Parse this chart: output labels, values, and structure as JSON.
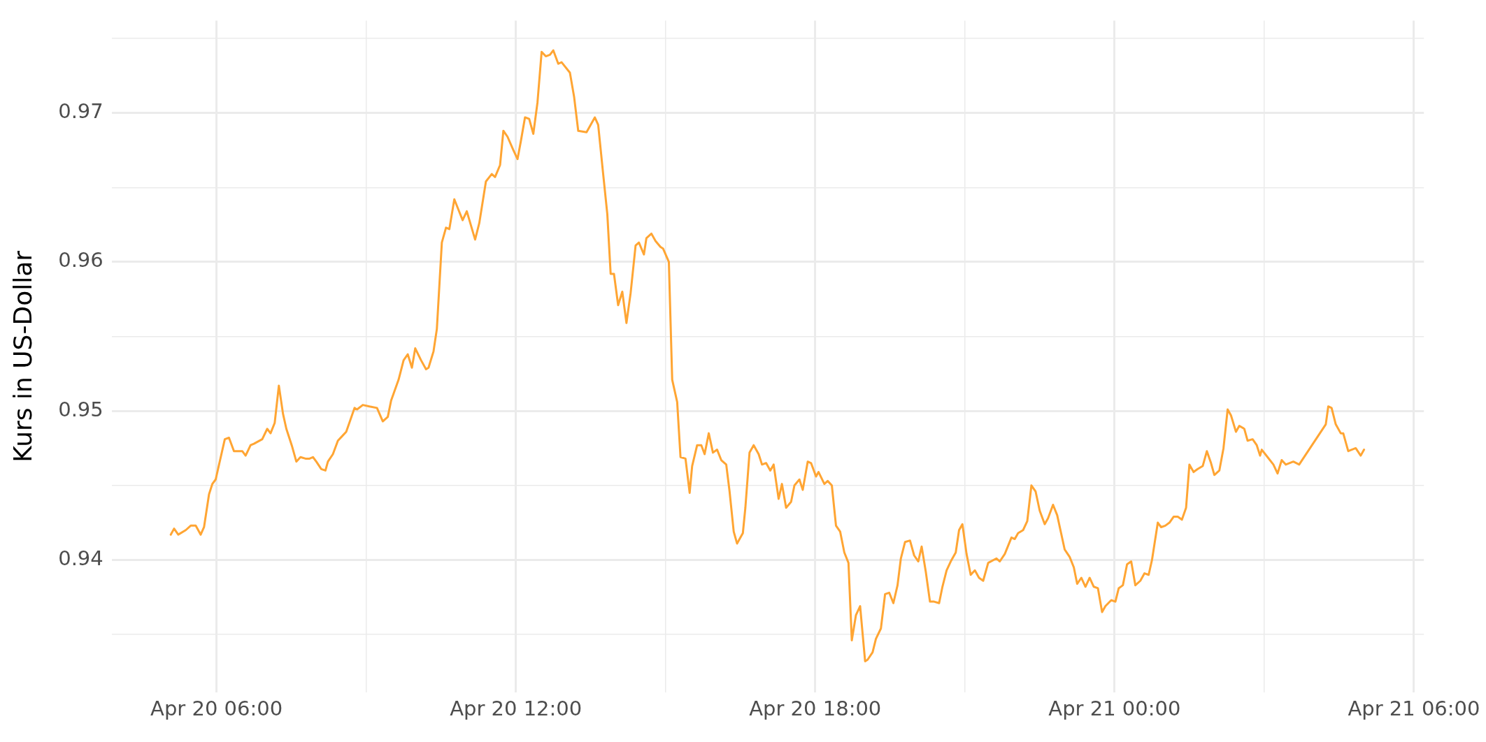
{
  "chart_data": {
    "type": "line",
    "ylabel": "Kurs in US-Dollar",
    "grid": true,
    "legend": false,
    "marker": "none",
    "line_style": "solid",
    "xlim": [
      "--04-20T03:54",
      "--04-21T06:12"
    ],
    "xticks": [
      {
        "value": "--04-20T06:00",
        "label": "Apr 20 06:00"
      },
      {
        "value": "--04-20T09:00",
        "label": null
      },
      {
        "value": "--04-20T12:00",
        "label": "Apr 20 12:00"
      },
      {
        "value": "--04-20T15:00",
        "label": null
      },
      {
        "value": "--04-20T18:00",
        "label": "Apr 20 18:00"
      },
      {
        "value": "--04-20T21:00",
        "label": null
      },
      {
        "value": "--04-21T00:00",
        "label": "Apr 21 00:00"
      },
      {
        "value": "--04-21T03:00",
        "label": null
      },
      {
        "value": "--04-21T06:00",
        "label": "Apr 21 06:00"
      }
    ],
    "ylim": [
      0.9311,
      0.9762
    ],
    "yticks": [
      {
        "value": 0.935,
        "label": null
      },
      0.94,
      {
        "value": 0.945,
        "label": null
      },
      0.95,
      {
        "value": 0.955,
        "label": null
      },
      0.96,
      {
        "value": 0.965,
        "label": null
      },
      0.97,
      {
        "value": 0.975,
        "label": null
      }
    ],
    "series": [
      {
        "color": "#ffa533",
        "x": [
          "--04-20T05:05",
          "--04-20T05:09",
          "--04-20T05:14",
          "--04-20T05:23",
          "--04-20T05:29",
          "--04-20T05:35",
          "--04-20T05:41",
          "--04-20T05:45",
          "--04-20T05:51",
          "--04-20T05:55",
          "--04-20T05:59",
          "--04-20T06:10",
          "--04-20T06:15",
          "--04-20T06:21",
          "--04-20T06:26",
          "--04-20T06:31",
          "--04-20T06:35",
          "--04-20T06:41",
          "--04-20T06:45",
          "--04-20T06:55",
          "--04-20T07:01",
          "--04-20T07:05",
          "--04-20T07:10",
          "--04-20T07:15",
          "--04-20T07:20",
          "--04-20T07:24",
          "--04-20T07:31",
          "--04-20T07:36",
          "--04-20T07:41",
          "--04-20T07:47",
          "--04-20T07:52",
          "--04-20T07:56",
          "--04-20T08:00",
          "--04-20T08:06",
          "--04-20T08:11",
          "--04-20T08:14",
          "--04-20T08:20",
          "--04-20T08:26",
          "--04-20T08:31",
          "--04-20T08:36",
          "--04-20T08:41",
          "--04-20T08:46",
          "--04-20T08:49",
          "--04-20T08:56",
          "--04-20T09:04",
          "--04-20T09:13",
          "--04-20T09:20",
          "--04-20T09:26",
          "--04-20T09:30",
          "--04-20T09:39",
          "--04-20T09:45",
          "--04-20T09:50",
          "--04-20T09:55",
          "--04-20T09:59",
          "--04-20T10:06",
          "--04-20T10:12",
          "--04-20T10:15",
          "--04-20T10:21",
          "--04-20T10:25",
          "--04-20T10:31",
          "--04-20T10:36",
          "--04-20T10:40",
          "--04-20T10:46",
          "--04-20T10:51",
          "--04-20T10:56",
          "--04-20T11:01",
          "--04-20T11:11",
          "--04-20T11:16",
          "--04-20T11:24",
          "--04-20T11:31",
          "--04-20T11:35",
          "--04-20T11:41",
          "--04-20T11:45",
          "--04-20T11:50",
          "--04-20T11:57",
          "--04-20T12:02",
          "--04-20T12:06",
          "--04-20T12:11",
          "--04-20T12:16",
          "--04-20T12:21",
          "--04-20T12:26",
          "--04-20T12:31",
          "--04-20T12:36",
          "--04-20T12:41",
          "--04-20T12:45",
          "--04-20T12:51",
          "--04-20T12:55",
          "--04-20T13:05",
          "--04-20T13:10",
          "--04-20T13:15",
          "--04-20T13:25",
          "--04-20T13:29",
          "--04-20T13:35",
          "--04-20T13:39",
          "--04-20T13:45",
          "--04-20T13:50",
          "--04-20T13:54",
          "--04-20T13:58",
          "--04-20T14:03",
          "--04-20T14:08",
          "--04-20T14:13",
          "--04-20T14:18",
          "--04-20T14:24",
          "--04-20T14:28",
          "--04-20T14:34",
          "--04-20T14:37",
          "--04-20T14:43",
          "--04-20T14:48",
          "--04-20T14:54",
          "--04-20T14:57",
          "--04-20T15:04",
          "--04-20T15:08",
          "--04-20T15:14",
          "--04-20T15:18",
          "--04-20T15:24",
          "--04-20T15:29",
          "--04-20T15:32",
          "--04-20T15:38",
          "--04-20T15:43",
          "--04-20T15:47",
          "--04-20T15:52",
          "--04-20T15:57",
          "--04-20T16:02",
          "--04-20T16:07",
          "--04-20T16:13",
          "--04-20T16:17",
          "--04-20T16:22",
          "--04-20T16:26",
          "--04-20T16:33",
          "--04-20T16:36",
          "--04-20T16:41",
          "--04-20T16:46",
          "--04-20T16:52",
          "--04-20T16:56",
          "--04-20T17:01",
          "--04-20T17:06",
          "--04-20T17:10",
          "--04-20T17:16",
          "--04-20T17:20",
          "--04-20T17:25",
          "--04-20T17:31",
          "--04-20T17:35",
          "--04-20T17:41",
          "--04-20T17:45",
          "--04-20T17:51",
          "--04-20T17:55",
          "--04-20T18:01",
          "--04-20T18:04",
          "--04-20T18:11",
          "--04-20T18:15",
          "--04-20T18:20",
          "--04-20T18:25",
          "--04-20T18:30",
          "--04-20T18:35",
          "--04-20T18:40",
          "--04-20T18:44",
          "--04-20T18:49",
          "--04-20T18:54",
          "--04-20T19:00",
          "--04-20T19:03",
          "--04-20T19:09",
          "--04-20T19:13",
          "--04-20T19:19",
          "--04-20T19:24",
          "--04-20T19:29",
          "--04-20T19:34",
          "--04-20T19:39",
          "--04-20T19:43",
          "--04-20T19:48",
          "--04-20T19:54",
          "--04-20T19:59",
          "--04-20T20:04",
          "--04-20T20:08",
          "--04-20T20:13",
          "--04-20T20:18",
          "--04-20T20:23",
          "--04-20T20:29",
          "--04-20T20:33",
          "--04-20T20:38",
          "--04-20T20:43",
          "--04-20T20:49",
          "--04-20T20:53",
          "--04-20T20:57",
          "--04-20T21:02",
          "--04-20T21:07",
          "--04-20T21:12",
          "--04-20T21:17",
          "--04-20T21:22",
          "--04-20T21:28",
          "--04-20T21:38",
          "--04-20T21:42",
          "--04-20T21:48",
          "--04-20T21:56",
          "--04-20T22:00",
          "--04-20T22:04",
          "--04-20T22:10",
          "--04-20T22:15",
          "--04-20T22:20",
          "--04-20T22:25",
          "--04-20T22:30",
          "--04-20T22:36",
          "--04-20T22:40",
          "--04-20T22:46",
          "--04-20T22:51",
          "--04-20T23:00",
          "--04-20T23:06",
          "--04-20T23:11",
          "--04-20T23:15",
          "--04-20T23:20",
          "--04-20T23:25",
          "--04-20T23:30",
          "--04-20T23:35",
          "--04-20T23:40",
          "--04-20T23:45",
          "--04-20T23:49",
          "--04-20T23:56",
          "--04-21T00:01",
          "--04-21T00:05",
          "--04-21T00:10",
          "--04-21T00:15",
          "--04-21T00:20",
          "--04-21T00:25",
          "--04-21T00:31",
          "--04-21T00:36",
          "--04-21T00:41",
          "--04-21T00:45",
          "--04-21T00:52",
          "--04-21T00:56",
          "--04-21T01:01",
          "--04-21T01:06",
          "--04-21T01:11",
          "--04-21T01:16",
          "--04-21T01:21",
          "--04-21T01:26",
          "--04-21T01:30",
          "--04-21T01:35",
          "--04-21T01:40",
          "--04-21T01:46",
          "--04-21T01:51",
          "--04-21T01:56",
          "--04-21T02:00",
          "--04-21T02:06",
          "--04-21T02:11",
          "--04-21T02:16",
          "--04-21T02:20",
          "--04-21T02:26",
          "--04-21T02:30",
          "--04-21T02:36",
          "--04-21T02:40",
          "--04-21T02:46",
          "--04-21T02:51",
          "--04-21T02:55",
          "--04-21T02:57",
          "--04-21T03:04",
          "--04-21T03:11",
          "--04-21T03:16",
          "--04-21T03:21",
          "--04-21T03:26",
          "--04-21T03:35",
          "--04-21T03:42",
          "--04-21T04:14",
          "--04-21T04:17",
          "--04-21T04:21",
          "--04-21T04:26",
          "--04-21T04:32",
          "--04-21T04:35",
          "--04-21T04:41",
          "--04-21T04:50",
          "--04-21T04:56",
          "--04-21T05:00"
        ],
        "values": [
          0.9417,
          0.9421,
          0.9417,
          0.942,
          0.9423,
          0.9423,
          0.9417,
          0.9422,
          0.9444,
          0.9451,
          0.9454,
          0.9481,
          0.9482,
          0.9473,
          0.9473,
          0.9473,
          0.947,
          0.9477,
          0.9478,
          0.9481,
          0.9488,
          0.9485,
          0.9492,
          0.9517,
          0.9498,
          0.9488,
          0.9476,
          0.9466,
          0.9469,
          0.9468,
          0.9468,
          0.9469,
          0.9466,
          0.9461,
          0.946,
          0.9466,
          0.9471,
          0.948,
          0.9483,
          0.9486,
          0.9494,
          0.9502,
          0.9501,
          0.9504,
          0.9503,
          0.9502,
          0.9493,
          0.9496,
          0.9507,
          0.9521,
          0.9534,
          0.9538,
          0.9529,
          0.9542,
          0.9534,
          0.9528,
          0.9529,
          0.954,
          0.9555,
          0.9613,
          0.9623,
          0.9622,
          0.9642,
          0.9635,
          0.9628,
          0.9634,
          0.9615,
          0.9626,
          0.9654,
          0.9659,
          0.9657,
          0.9665,
          0.9688,
          0.9684,
          0.9675,
          0.9669,
          0.9681,
          0.9697,
          0.9696,
          0.9686,
          0.9707,
          0.9741,
          0.9738,
          0.9739,
          0.9742,
          0.9733,
          0.9734,
          0.9727,
          0.9711,
          0.9688,
          0.9687,
          0.9691,
          0.9697,
          0.9692,
          0.9659,
          0.9632,
          0.9592,
          0.9592,
          0.9571,
          0.958,
          0.9559,
          0.9579,
          0.9611,
          0.9613,
          0.9605,
          0.9616,
          0.9619,
          0.9614,
          0.961,
          0.9609,
          0.96,
          0.9521,
          0.9506,
          0.9469,
          0.9468,
          0.9445,
          0.9463,
          0.9477,
          0.9477,
          0.9471,
          0.9485,
          0.9472,
          0.9474,
          0.9467,
          0.9464,
          0.9446,
          0.9419,
          0.9411,
          0.9418,
          0.9435,
          0.9472,
          0.9477,
          0.9471,
          0.9464,
          0.9465,
          0.946,
          0.9464,
          0.9441,
          0.9451,
          0.9435,
          0.9439,
          0.945,
          0.9454,
          0.9447,
          0.9466,
          0.9465,
          0.9456,
          0.9459,
          0.9451,
          0.9453,
          0.945,
          0.9423,
          0.9419,
          0.9405,
          0.9398,
          0.9346,
          0.9363,
          0.9369,
          0.9332,
          0.9333,
          0.9338,
          0.9347,
          0.9354,
          0.9377,
          0.9378,
          0.9371,
          0.9383,
          0.9401,
          0.9412,
          0.9413,
          0.9403,
          0.9399,
          0.9409,
          0.9392,
          0.9372,
          0.9372,
          0.9371,
          0.9382,
          0.9393,
          0.9399,
          0.9405,
          0.942,
          0.9424,
          0.9404,
          0.939,
          0.9393,
          0.9388,
          0.9386,
          0.9398,
          0.9401,
          0.9399,
          0.9404,
          0.9415,
          0.9414,
          0.9418,
          0.942,
          0.9426,
          0.945,
          0.9446,
          0.9433,
          0.9424,
          0.9428,
          0.9437,
          0.943,
          0.9407,
          0.9402,
          0.9395,
          0.9384,
          0.9388,
          0.9382,
          0.9388,
          0.9382,
          0.9381,
          0.9365,
          0.9369,
          0.9373,
          0.9372,
          0.9381,
          0.9383,
          0.9397,
          0.9399,
          0.9383,
          0.9386,
          0.9391,
          0.939,
          0.94,
          0.9425,
          0.9422,
          0.9423,
          0.9425,
          0.9429,
          0.9429,
          0.9427,
          0.9435,
          0.9464,
          0.9459,
          0.9461,
          0.9463,
          0.9473,
          0.9465,
          0.9457,
          0.946,
          0.9475,
          0.9501,
          0.9497,
          0.9486,
          0.949,
          0.9488,
          0.948,
          0.9481,
          0.9477,
          0.947,
          0.9474,
          0.9469,
          0.9464,
          0.9458,
          0.9467,
          0.9464,
          0.9466,
          0.9464,
          0.9491,
          0.9503,
          0.9502,
          0.9491,
          0.9485,
          0.9485,
          0.9473,
          0.9475,
          0.947,
          0.9474
        ]
      }
    ]
  }
}
